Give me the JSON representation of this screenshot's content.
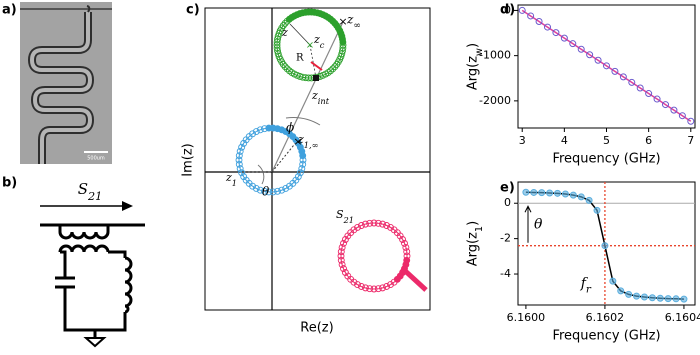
{
  "micrograph": {
    "label": "a)",
    "scale_bar": "500um"
  },
  "circuit": {
    "label": "b)",
    "signal": "S_{21}"
  },
  "complex_plane": {
    "label": "c)",
    "x_label": "Re(z)",
    "y_label": "Im(z)",
    "annotations": {
      "z_inf": "z_∞",
      "z": "z",
      "z_c": "z_c",
      "R": "R",
      "z_int": "z_{int}",
      "phi": "ϕ",
      "z1_inf": "z_{1,∞}",
      "z1": "z_1",
      "theta": "θ",
      "S21": "S_{21}"
    }
  },
  "chart_data": [
    {
      "type": "line",
      "label": "d)",
      "x_label": "Frequency (GHz)",
      "y_label": "Arg(z_w)",
      "xlim": [
        2.9,
        7.1
      ],
      "ylim": [
        -2600,
        120
      ],
      "xticks": [
        3,
        4,
        5,
        6,
        7
      ],
      "yticks": [
        0,
        -1000,
        -2000
      ],
      "series": [
        {
          "color": "#e0409a",
          "marker_color": "#6a5acd",
          "x": [
            3.0,
            3.2,
            3.4,
            3.6,
            3.8,
            4.0,
            4.2,
            4.4,
            4.6,
            4.8,
            5.0,
            5.2,
            5.4,
            5.6,
            5.8,
            6.0,
            6.2,
            6.4,
            6.6,
            6.8,
            7.0
          ],
          "values": [
            0,
            -122,
            -245,
            -368,
            -490,
            -612,
            -735,
            -858,
            -980,
            -1102,
            -1225,
            -1348,
            -1470,
            -1592,
            -1715,
            -1838,
            -1960,
            -2082,
            -2205,
            -2328,
            -2450
          ]
        }
      ]
    },
    {
      "type": "line",
      "label": "e)",
      "x_label": "Frequency (GHz)",
      "y_label": "Arg(z_1)",
      "xlim": [
        6.15998,
        6.160428
      ],
      "ylim": [
        -5.75,
        1.2
      ],
      "xticks": [
        {
          "value": 6.16,
          "label": "6.1600"
        },
        {
          "value": 6.1602,
          "label": "6.1602"
        },
        {
          "value": 6.1604,
          "label": "6.1604"
        }
      ],
      "yticks": [
        0,
        -2,
        -4
      ],
      "reference_lines": [
        {
          "axis": "y",
          "value": 0,
          "color": "#aaaaaa",
          "style": "solid"
        },
        {
          "axis": "y",
          "value": -2.4,
          "color": "#e8452c",
          "style": "dotted"
        },
        {
          "axis": "x",
          "value": 6.1602,
          "color": "#e8452c",
          "style": "dotted"
        }
      ],
      "annotations": {
        "theta": "θ",
        "fr": "f_r"
      },
      "series": [
        {
          "color": "#000000",
          "marker_color": "#5aaede",
          "x": [
            6.16,
            6.16002,
            6.16004,
            6.16006,
            6.16008,
            6.1601,
            6.16012,
            6.16014,
            6.16016,
            6.16018,
            6.1602,
            6.16022,
            6.16024,
            6.16026,
            6.16028,
            6.1603,
            6.16032,
            6.16034,
            6.16036,
            6.16038,
            6.1604
          ],
          "values": [
            0.62,
            0.61,
            0.6,
            0.58,
            0.56,
            0.52,
            0.46,
            0.36,
            0.16,
            -0.4,
            -2.4,
            -4.4,
            -4.95,
            -5.15,
            -5.25,
            -5.3,
            -5.34,
            -5.37,
            -5.39,
            -5.4,
            -5.42
          ]
        }
      ]
    }
  ]
}
